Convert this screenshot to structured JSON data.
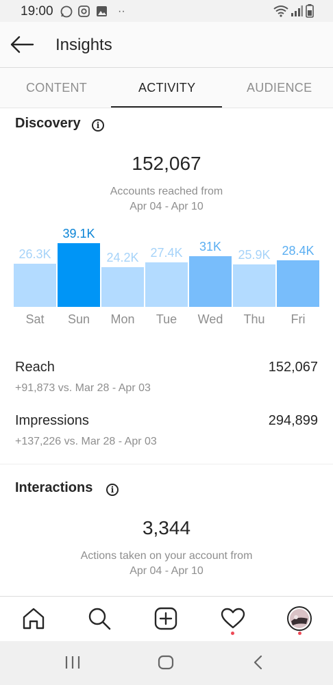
{
  "status_bar": {
    "time": "19:00"
  },
  "header": {
    "title": "Insights"
  },
  "tabs": [
    {
      "label": "CONTENT"
    },
    {
      "label": "ACTIVITY"
    },
    {
      "label": "AUDIENCE"
    }
  ],
  "discovery": {
    "title": "Discovery",
    "total": "152,067",
    "caption_line1": "Accounts reached from",
    "caption_line2": "Apr 04 - Apr 10",
    "rows": [
      {
        "label": "Reach",
        "value": "152,067",
        "delta": "+91,873 vs. Mar 28 - Apr 03"
      },
      {
        "label": "Impressions",
        "value": "294,899",
        "delta": "+137,226 vs. Mar 28 - Apr 03"
      }
    ]
  },
  "interactions": {
    "title": "Interactions",
    "total": "3,344",
    "caption_line1": "Actions taken on your account from",
    "caption_line2": "Apr 04 - Apr 10"
  },
  "chart_data": {
    "type": "bar",
    "categories": [
      "Sat",
      "Sun",
      "Mon",
      "Tue",
      "Wed",
      "Thu",
      "Fri"
    ],
    "values": [
      26.3,
      39.1,
      24.2,
      27.4,
      31,
      25.9,
      28.4
    ],
    "labels": [
      "26.3K",
      "39.1K",
      "24.2K",
      "27.4K",
      "31K",
      "25.9K",
      "28.4K"
    ],
    "unit": "K",
    "colors": {
      "low": "#b3dbff",
      "mid": "#78bdfb",
      "high": "#0095f6",
      "low_text": "#a6d3f9",
      "mid_text": "#5aaef2",
      "high_text": "#0a84d6"
    }
  },
  "bottom_nav": [
    {
      "icon": "home-icon"
    },
    {
      "icon": "search-icon"
    },
    {
      "icon": "add-post-icon"
    },
    {
      "icon": "heart-icon"
    },
    {
      "icon": "profile-avatar"
    }
  ],
  "system_nav": [
    {
      "icon": "recent-apps-icon"
    },
    {
      "icon": "home-button-icon"
    },
    {
      "icon": "back-button-icon"
    }
  ],
  "colors": {
    "accent": "#0095f6",
    "text": "#262626",
    "muted": "#8e8e8e",
    "notification_dot": "#ed4956"
  }
}
